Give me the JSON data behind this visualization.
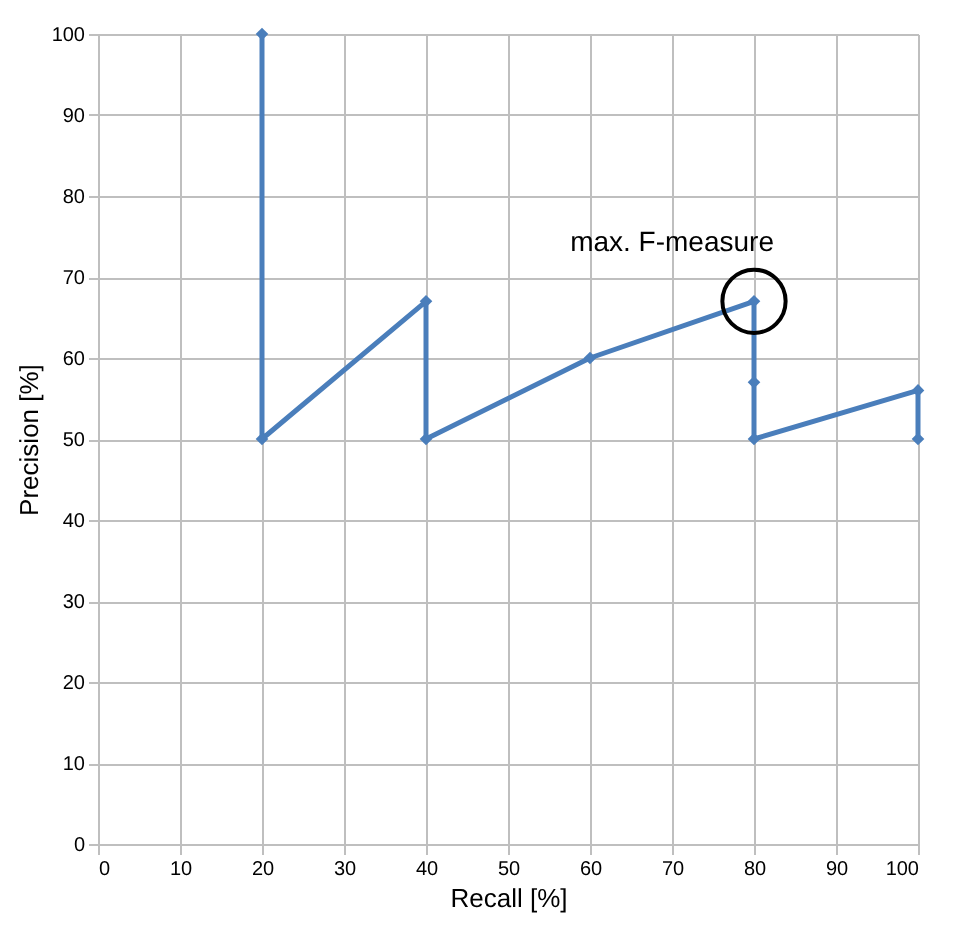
{
  "chart_data": {
    "type": "line",
    "xlabel": "Recall [%]",
    "ylabel": "Precision [%]",
    "x": [
      20,
      20,
      40,
      40,
      60,
      80,
      80,
      80,
      100,
      100
    ],
    "series": [
      {
        "color": "#4a7ebb",
        "values": [
          100,
          50,
          67,
          50,
          60,
          67,
          57,
          50,
          56,
          50
        ]
      }
    ],
    "xlim": [
      0,
      100
    ],
    "xticks": [
      0,
      10,
      20,
      30,
      40,
      50,
      60,
      70,
      80,
      90,
      100
    ],
    "ylim": [
      0,
      100
    ],
    "yticks": [
      0,
      10,
      20,
      30,
      40,
      50,
      60,
      70,
      80,
      90,
      100
    ],
    "grid": true,
    "marker": "diamond",
    "line_style": "solid",
    "annotations": [
      {
        "text": "max. F-measure",
        "x": 80,
        "y": 67
      }
    ]
  }
}
